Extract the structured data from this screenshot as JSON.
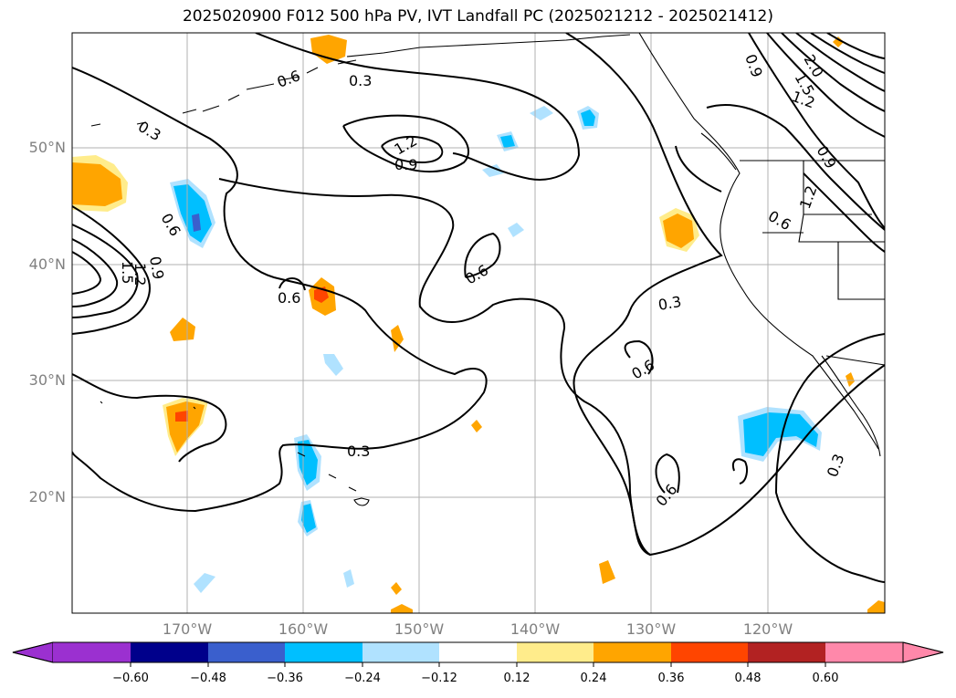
{
  "title": "2025020900 F012 500 hPa PV, IVT Landfall PC (2025021212 - 2025021412)",
  "map": {
    "lat_labels": [
      "50°N",
      "40°N",
      "30°N",
      "20°N"
    ],
    "lon_labels": [
      "170°W",
      "160°W",
      "150°W",
      "140°W",
      "130°W",
      "120°W"
    ],
    "contour_labels": [
      "0.3",
      "0.3",
      "0.9",
      "1.2",
      "0.6",
      "0.9",
      "1.2",
      "1.5",
      "0.6",
      "0.6",
      "0.3",
      "0.6",
      "0.3",
      "0.6",
      "0.6",
      "0.9",
      "1.2",
      "0.9",
      "1.2",
      "1.5",
      "2.0",
      "0.6",
      "0.3"
    ],
    "colors": {
      "grid": "#b0b0b0",
      "contour": "#000000",
      "coast": "#000000"
    }
  },
  "colorbar": {
    "ticks": [
      "−0.60",
      "−0.48",
      "−0.36",
      "−0.24",
      "−0.12",
      "0.12",
      "0.24",
      "0.36",
      "0.48",
      "0.60"
    ],
    "colors": [
      "#9b30d0",
      "#00008b",
      "#3a5fcd",
      "#00bfff",
      "#b0e2ff",
      "#ffffff",
      "#ffec8b",
      "#ffa500",
      "#ff4500",
      "#b22222",
      "#ff88aa"
    ]
  }
}
